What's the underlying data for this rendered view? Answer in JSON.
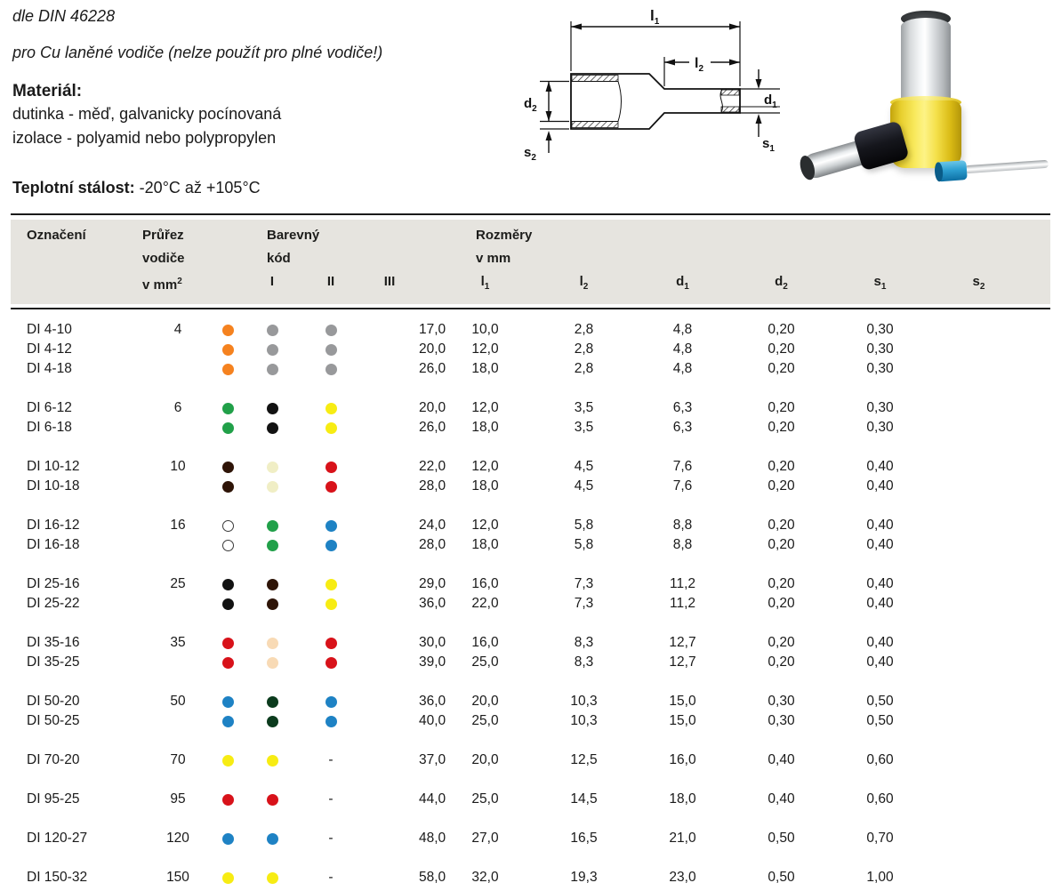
{
  "intro": {
    "norm": "dle DIN 46228",
    "usage": "pro Cu laněné vodiče (nelze použít pro plné vodiče!)",
    "material_label": "Materiál:",
    "material_line1": "dutinka - měď, galvanicky pocínovaná",
    "material_line2": "izolace - polyamid nebo polypropylen",
    "temp_label": "Teplotní stálost:",
    "temp_value": " -20°C až +105°C"
  },
  "diagram": {
    "l1": {
      "base": "l",
      "sub": "1"
    },
    "l2": {
      "base": "l",
      "sub": "2"
    },
    "d1": {
      "base": "d",
      "sub": "1"
    },
    "d2": {
      "base": "d",
      "sub": "2"
    },
    "s1": {
      "base": "s",
      "sub": "1"
    },
    "s2": {
      "base": "s",
      "sub": "2"
    }
  },
  "table": {
    "header": {
      "designation": "Označení",
      "cross": [
        "Průřez",
        "vodiče",
        "v mm"
      ],
      "cross_sup": "2",
      "color_group": [
        "Barevný",
        "kód"
      ],
      "color_cols": [
        "I",
        "II",
        "III"
      ],
      "dims_group": [
        "Rozměry",
        "v mm"
      ],
      "dims": [
        {
          "base": "l",
          "sub": "1"
        },
        {
          "base": "l",
          "sub": "2"
        },
        {
          "base": "d",
          "sub": "1"
        },
        {
          "base": "d",
          "sub": "2"
        },
        {
          "base": "s",
          "sub": "1"
        },
        {
          "base": "s",
          "sub": "2"
        }
      ]
    },
    "no_color_symbol": "-",
    "color_map": {
      "orange": "#F5821F",
      "gray": "#98999B",
      "green": "#21A049",
      "black": "#121212",
      "yellow": "#F7EC13",
      "brown": "#2E1407",
      "ivory": "#F0EEC5",
      "red": "#D8121A",
      "white": "#FFFFFF",
      "blue": "#1E82C4",
      "darkgreen": "#0B3B1D",
      "beige": "#F8DAB5"
    },
    "groups": [
      {
        "rows": [
          {
            "name": "DI 4-10",
            "cross": "4",
            "colors": [
              "orange",
              "gray",
              "gray"
            ],
            "dims": [
              "17,0",
              "10,0",
              "2,8",
              "4,8",
              "0,20",
              "0,30"
            ]
          },
          {
            "name": "DI 4-12",
            "cross": "",
            "colors": [
              "orange",
              "gray",
              "gray"
            ],
            "dims": [
              "20,0",
              "12,0",
              "2,8",
              "4,8",
              "0,20",
              "0,30"
            ]
          },
          {
            "name": "DI 4-18",
            "cross": "",
            "colors": [
              "orange",
              "gray",
              "gray"
            ],
            "dims": [
              "26,0",
              "18,0",
              "2,8",
              "4,8",
              "0,20",
              "0,30"
            ]
          }
        ]
      },
      {
        "rows": [
          {
            "name": "DI 6-12",
            "cross": "6",
            "colors": [
              "green",
              "black",
              "yellow"
            ],
            "dims": [
              "20,0",
              "12,0",
              "3,5",
              "6,3",
              "0,20",
              "0,30"
            ]
          },
          {
            "name": "DI 6-18",
            "cross": "",
            "colors": [
              "green",
              "black",
              "yellow"
            ],
            "dims": [
              "26,0",
              "18,0",
              "3,5",
              "6,3",
              "0,20",
              "0,30"
            ]
          }
        ]
      },
      {
        "rows": [
          {
            "name": "DI 10-12",
            "cross": "10",
            "colors": [
              "brown",
              "ivory",
              "red"
            ],
            "dims": [
              "22,0",
              "12,0",
              "4,5",
              "7,6",
              "0,20",
              "0,40"
            ]
          },
          {
            "name": "DI 10-18",
            "cross": "",
            "colors": [
              "brown",
              "ivory",
              "red"
            ],
            "dims": [
              "28,0",
              "18,0",
              "4,5",
              "7,6",
              "0,20",
              "0,40"
            ]
          }
        ]
      },
      {
        "rows": [
          {
            "name": "DI 16-12",
            "cross": "16",
            "colors": [
              "white",
              "green",
              "blue"
            ],
            "dims": [
              "24,0",
              "12,0",
              "5,8",
              "8,8",
              "0,20",
              "0,40"
            ]
          },
          {
            "name": "DI 16-18",
            "cross": "",
            "colors": [
              "white",
              "green",
              "blue"
            ],
            "dims": [
              "28,0",
              "18,0",
              "5,8",
              "8,8",
              "0,20",
              "0,40"
            ]
          }
        ]
      },
      {
        "rows": [
          {
            "name": "DI 25-16",
            "cross": "25",
            "colors": [
              "black",
              "brown",
              "yellow"
            ],
            "dims": [
              "29,0",
              "16,0",
              "7,3",
              "11,2",
              "0,20",
              "0,40"
            ]
          },
          {
            "name": "DI 25-22",
            "cross": "",
            "colors": [
              "black",
              "brown",
              "yellow"
            ],
            "dims": [
              "36,0",
              "22,0",
              "7,3",
              "11,2",
              "0,20",
              "0,40"
            ]
          }
        ]
      },
      {
        "rows": [
          {
            "name": "DI 35-16",
            "cross": "35",
            "colors": [
              "red",
              "beige",
              "red"
            ],
            "dims": [
              "30,0",
              "16,0",
              "8,3",
              "12,7",
              "0,20",
              "0,40"
            ]
          },
          {
            "name": "DI 35-25",
            "cross": "",
            "colors": [
              "red",
              "beige",
              "red"
            ],
            "dims": [
              "39,0",
              "25,0",
              "8,3",
              "12,7",
              "0,20",
              "0,40"
            ]
          }
        ]
      },
      {
        "rows": [
          {
            "name": "DI 50-20",
            "cross": "50",
            "colors": [
              "blue",
              "darkgreen",
              "blue"
            ],
            "dims": [
              "36,0",
              "20,0",
              "10,3",
              "15,0",
              "0,30",
              "0,50"
            ]
          },
          {
            "name": "DI 50-25",
            "cross": "",
            "colors": [
              "blue",
              "darkgreen",
              "blue"
            ],
            "dims": [
              "40,0",
              "25,0",
              "10,3",
              "15,0",
              "0,30",
              "0,50"
            ]
          }
        ]
      },
      {
        "rows": [
          {
            "name": "DI 70-20",
            "cross": "70",
            "colors": [
              "yellow",
              "yellow",
              "dash"
            ],
            "dims": [
              "37,0",
              "20,0",
              "12,5",
              "16,0",
              "0,40",
              "0,60"
            ]
          }
        ]
      },
      {
        "rows": [
          {
            "name": "DI 95-25",
            "cross": "95",
            "colors": [
              "red",
              "red",
              "dash"
            ],
            "dims": [
              "44,0",
              "25,0",
              "14,5",
              "18,0",
              "0,40",
              "0,60"
            ]
          }
        ]
      },
      {
        "rows": [
          {
            "name": "DI 120-27",
            "cross": "120",
            "colors": [
              "blue",
              "blue",
              "dash"
            ],
            "dims": [
              "48,0",
              "27,0",
              "16,5",
              "21,0",
              "0,50",
              "0,70"
            ]
          }
        ]
      },
      {
        "rows": [
          {
            "name": "DI 150-32",
            "cross": "150",
            "colors": [
              "yellow",
              "yellow",
              "dash"
            ],
            "dims": [
              "58,0",
              "32,0",
              "19,3",
              "23,0",
              "0,50",
              "1,00"
            ]
          }
        ]
      }
    ]
  }
}
